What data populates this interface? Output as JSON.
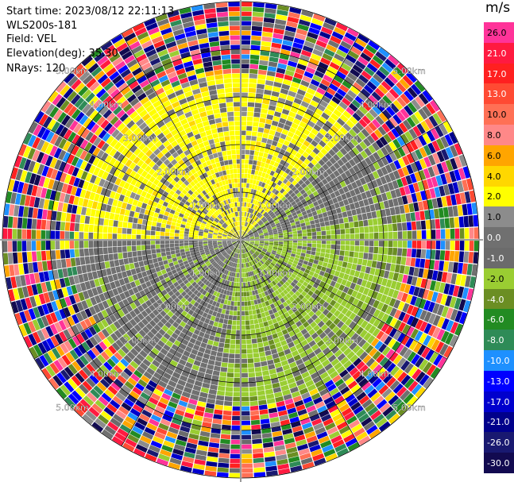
{
  "header": {
    "start_time": "Start time: 2023/08/12 22:11:13",
    "instrument": "WLS200s-181",
    "field": "Field: VEL",
    "elevation": "Elevation(deg): 35.30",
    "nrays": "NRays: 120"
  },
  "colorbar": {
    "unit": "m/s",
    "levels": [
      {
        "label": "26.0",
        "color": "#ff3399"
      },
      {
        "label": "21.0",
        "color": "#ff1a40"
      },
      {
        "label": "17.0",
        "color": "#ff2020"
      },
      {
        "label": "13.0",
        "color": "#ff4a33"
      },
      {
        "label": "10.0",
        "color": "#ff7055"
      },
      {
        "label": "8.0",
        "color": "#ff8888"
      },
      {
        "label": "6.0",
        "color": "#ffa500"
      },
      {
        "label": "4.0",
        "color": "#ffd700"
      },
      {
        "label": "2.0",
        "color": "#ffff00"
      },
      {
        "label": "1.0",
        "color": "#8c8c8c"
      },
      {
        "label": "0.0",
        "color": "#707070"
      },
      {
        "label": "-1.0",
        "color": "#6b6b6b"
      },
      {
        "label": "-2.0",
        "color": "#9acd32"
      },
      {
        "label": "-4.0",
        "color": "#6b8e23"
      },
      {
        "label": "-6.0",
        "color": "#228b22"
      },
      {
        "label": "-8.0",
        "color": "#2e8b57"
      },
      {
        "label": "-10.0",
        "color": "#1e90ff"
      },
      {
        "label": "-13.0",
        "color": "#0000ff"
      },
      {
        "label": "-17.0",
        "color": "#0000cd"
      },
      {
        "label": "-21.0",
        "color": "#00008b"
      },
      {
        "label": "-26.0",
        "color": "#191970"
      },
      {
        "label": "-30.0",
        "color": "#120a50"
      }
    ]
  },
  "chart_data": {
    "type": "ppi",
    "field": "VEL",
    "units": "m/s",
    "n_rays": 120,
    "elevation_deg": 35.3,
    "max_range_km": 5.0,
    "range_rings_km": [
      1.0,
      2.0,
      3.0,
      4.0,
      5.0
    ],
    "range_ring_labels": [
      "1.00km",
      "2.00km",
      "3.00km",
      "4.00km",
      "5.00km"
    ],
    "spoke_azimuths_deg": [
      0,
      30,
      60,
      90,
      120,
      150,
      180,
      210,
      240,
      270,
      300,
      330
    ],
    "color_levels": [
      -30.0,
      -26.0,
      -21.0,
      -17.0,
      -13.0,
      -10.0,
      -8.0,
      -6.0,
      -4.0,
      -2.0,
      -1.0,
      0.0,
      1.0,
      2.0,
      4.0,
      6.0,
      8.0,
      10.0,
      13.0,
      17.0,
      21.0,
      26.0
    ],
    "clean_region_range_km": [
      0,
      3.5
    ],
    "sectors": [
      {
        "azimuth_range_deg": [
          270,
          360
        ],
        "dominant_velocity_ms": 2.0
      },
      {
        "azimuth_range_deg": [
          0,
          45
        ],
        "dominant_velocity_ms": 2.0
      },
      {
        "azimuth_range_deg": [
          45,
          80
        ],
        "dominant_velocity_ms": 0.0
      },
      {
        "azimuth_range_deg": [
          80,
          190
        ],
        "dominant_velocity_ms": -2.0
      },
      {
        "azimuth_range_deg": [
          190,
          270
        ],
        "dominant_velocity_ms": 0.0
      }
    ],
    "noise_region_range_km": [
      3.5,
      5.0
    ]
  }
}
